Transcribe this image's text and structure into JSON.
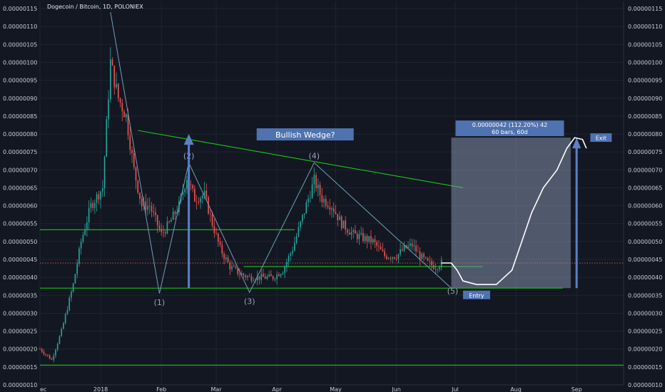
{
  "colors": {
    "background": "#131722",
    "grid": "#1e2433",
    "axis_text": "#c9ccd4",
    "candle_up": "#26a69a",
    "candle_down": "#ef5350",
    "support": "#19c819",
    "trendline": "#19c819",
    "pattern_line": "#6fa0b8",
    "arrow": "#5b80c4",
    "box": "#8390a8",
    "label_bg": "#4f72b0"
  },
  "chart_data": {
    "type": "candlestick",
    "title": "Dogecoin / Bitcoin, 1D, POLONIEX",
    "y_axis": {
      "min": 1e-07,
      "max": 1.17e-06,
      "step": 5e-08,
      "ticks": [
        "0.00000010",
        "0.00000015",
        "0.00000020",
        "0.00000025",
        "0.00000030",
        "0.00000035",
        "0.00000040",
        "0.00000045",
        "0.00000050",
        "0.00000055",
        "0.00000060",
        "0.00000065",
        "0.00000070",
        "0.00000075",
        "0.00000080",
        "0.00000085",
        "0.00000090",
        "0.00000095",
        "0.00000100",
        "0.00000105",
        "0.00000110",
        "0.00000115"
      ],
      "position": "both sides"
    },
    "x_axis": {
      "start": "2017-12-01",
      "end": "2018-09-25",
      "ticks": [
        {
          "label": "ec",
          "date": "2017-12-01"
        },
        {
          "label": "2018",
          "date": "2018-01-01"
        },
        {
          "label": "Feb",
          "date": "2018-02-01"
        },
        {
          "label": "Mar",
          "date": "2018-03-01"
        },
        {
          "label": "Apr",
          "date": "2018-04-01"
        },
        {
          "label": "May",
          "date": "2018-05-01"
        },
        {
          "label": "Jun",
          "date": "2018-06-01"
        },
        {
          "label": "Jul",
          "date": "2018-07-01"
        },
        {
          "label": "Aug",
          "date": "2018-08-01"
        },
        {
          "label": "Sep",
          "date": "2018-09-01"
        }
      ]
    },
    "price_path": [
      {
        "date": "2017-12-01",
        "price": 2e-07
      },
      {
        "date": "2017-12-07",
        "price": 1.7e-07
      },
      {
        "date": "2017-12-12",
        "price": 2.5e-07
      },
      {
        "date": "2017-12-18",
        "price": 3.8e-07
      },
      {
        "date": "2017-12-22",
        "price": 5e-07
      },
      {
        "date": "2017-12-27",
        "price": 6e-07
      },
      {
        "date": "2018-01-02",
        "price": 6.5e-07
      },
      {
        "date": "2018-01-06",
        "price": 1e-06
      },
      {
        "date": "2018-01-10",
        "price": 9e-07
      },
      {
        "date": "2018-01-14",
        "price": 8.5e-07
      },
      {
        "date": "2018-01-18",
        "price": 7e-07
      },
      {
        "date": "2018-01-22",
        "price": 6e-07
      },
      {
        "date": "2018-01-26",
        "price": 6e-07
      },
      {
        "date": "2018-02-01",
        "price": 5.2e-07
      },
      {
        "date": "2018-02-05",
        "price": 5.5e-07
      },
      {
        "date": "2018-02-10",
        "price": 6e-07
      },
      {
        "date": "2018-02-14",
        "price": 6.8e-07
      },
      {
        "date": "2018-02-18",
        "price": 6.2e-07
      },
      {
        "date": "2018-02-23",
        "price": 6.3e-07
      },
      {
        "date": "2018-02-27",
        "price": 5.5e-07
      },
      {
        "date": "2018-03-03",
        "price": 4.8e-07
      },
      {
        "date": "2018-03-08",
        "price": 4.3e-07
      },
      {
        "date": "2018-03-13",
        "price": 4.1e-07
      },
      {
        "date": "2018-03-18",
        "price": 4e-07
      },
      {
        "date": "2018-03-24",
        "price": 4e-07
      },
      {
        "date": "2018-03-30",
        "price": 4e-07
      },
      {
        "date": "2018-04-04",
        "price": 4.2e-07
      },
      {
        "date": "2018-04-09",
        "price": 4.8e-07
      },
      {
        "date": "2018-04-13",
        "price": 5.5e-07
      },
      {
        "date": "2018-04-17",
        "price": 6.2e-07
      },
      {
        "date": "2018-04-20",
        "price": 6.7e-07
      },
      {
        "date": "2018-04-24",
        "price": 6.2e-07
      },
      {
        "date": "2018-04-29",
        "price": 6e-07
      },
      {
        "date": "2018-05-04",
        "price": 5.5e-07
      },
      {
        "date": "2018-05-10",
        "price": 5.2e-07
      },
      {
        "date": "2018-05-15",
        "price": 5.1e-07
      },
      {
        "date": "2018-05-20",
        "price": 5e-07
      },
      {
        "date": "2018-05-26",
        "price": 4.6e-07
      },
      {
        "date": "2018-06-01",
        "price": 4.6e-07
      },
      {
        "date": "2018-06-05",
        "price": 4.8e-07
      },
      {
        "date": "2018-06-09",
        "price": 4.9e-07
      },
      {
        "date": "2018-06-13",
        "price": 4.6e-07
      },
      {
        "date": "2018-06-17",
        "price": 4.4e-07
      },
      {
        "date": "2018-06-21",
        "price": 4.3e-07
      },
      {
        "date": "2018-06-24",
        "price": 4.4e-07
      }
    ],
    "annotations": {
      "title_box": "Bullish Wedge?",
      "wave_points": [
        {
          "label": "(1)",
          "date": "2018-01-31",
          "price": 3.55e-07
        },
        {
          "label": "(2)",
          "date": "2018-02-15",
          "price": 7.2e-07
        },
        {
          "label": "(3)",
          "date": "2018-03-18",
          "price": 3.58e-07
        },
        {
          "label": "(4)",
          "date": "2018-04-20",
          "price": 7.2e-07
        },
        {
          "label": "(5)",
          "date": "2018-06-29",
          "price": 3.7e-07
        }
      ],
      "measure_label_line1": "0.00000042 (112.20%) 42",
      "measure_label_line2": "60 bars, 60d",
      "entry_label": "Entry",
      "exit_label": "Exit",
      "current_price": 4.4e-07
    }
  }
}
